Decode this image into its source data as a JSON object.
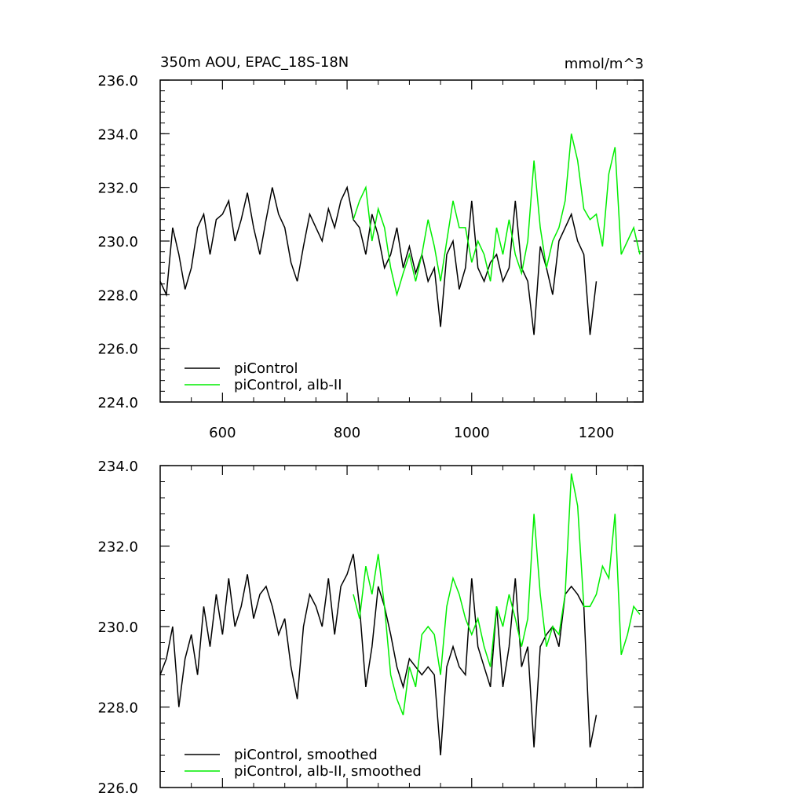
{
  "chart_data": [
    {
      "type": "line",
      "title": "350m AOU, EPAC_18S-18N",
      "units": "mmol/m^3",
      "xlim": [
        500,
        1275
      ],
      "ylim": [
        224.0,
        236.0
      ],
      "xticks": [
        600,
        800,
        1000,
        1200
      ],
      "xtick_labels": [
        "600",
        "800",
        "1000",
        "1200"
      ],
      "yticks": [
        224.0,
        226.0,
        228.0,
        230.0,
        232.0,
        234.0,
        236.0
      ],
      "ytick_labels": [
        "224.0",
        "226.0",
        "228.0",
        "230.0",
        "232.0",
        "234.0",
        "236.0"
      ],
      "series": [
        {
          "name": "piControl",
          "color": "#000000",
          "x": [
            500,
            510,
            520,
            530,
            540,
            550,
            560,
            570,
            580,
            590,
            600,
            610,
            620,
            630,
            640,
            650,
            660,
            670,
            680,
            690,
            700,
            710,
            720,
            730,
            740,
            750,
            760,
            770,
            780,
            790,
            800,
            810,
            820,
            830,
            840,
            850,
            860,
            870,
            880,
            890,
            900,
            910,
            920,
            930,
            940,
            950,
            960,
            970,
            980,
            990,
            1000,
            1010,
            1020,
            1030,
            1040,
            1050,
            1060,
            1070,
            1080,
            1090,
            1100,
            1110,
            1120,
            1130,
            1140,
            1150,
            1160,
            1170,
            1180,
            1190,
            1200
          ],
          "values": [
            228.5,
            228.0,
            230.5,
            229.5,
            228.2,
            229.0,
            230.5,
            231.0,
            229.5,
            230.8,
            231.0,
            231.5,
            230.0,
            230.8,
            231.8,
            230.5,
            229.5,
            230.8,
            232.0,
            231.0,
            230.5,
            229.2,
            228.5,
            229.8,
            231.0,
            230.5,
            230.0,
            231.2,
            230.5,
            231.5,
            232.0,
            230.8,
            230.5,
            229.5,
            231.0,
            230.2,
            229.0,
            229.5,
            230.5,
            229.0,
            229.8,
            228.8,
            229.5,
            228.5,
            229.0,
            226.8,
            229.5,
            230.0,
            228.2,
            229.0,
            231.5,
            229.0,
            228.5,
            229.2,
            229.5,
            228.5,
            229.0,
            231.5,
            229.0,
            228.5,
            226.5,
            229.8,
            229.0,
            228.0,
            230.0,
            230.5,
            231.0,
            230.0,
            229.5,
            226.5,
            228.5
          ]
        },
        {
          "name": "piControl, alb-II",
          "color": "#00ee00",
          "x": [
            810,
            820,
            830,
            840,
            850,
            860,
            870,
            880,
            890,
            900,
            910,
            920,
            930,
            940,
            950,
            960,
            970,
            980,
            990,
            1000,
            1010,
            1020,
            1030,
            1040,
            1050,
            1060,
            1070,
            1080,
            1090,
            1100,
            1110,
            1120,
            1130,
            1140,
            1150,
            1160,
            1170,
            1180,
            1190,
            1200,
            1210,
            1220,
            1230,
            1240,
            1250,
            1260,
            1270
          ],
          "values": [
            230.8,
            231.5,
            232.0,
            230.0,
            231.2,
            230.5,
            229.0,
            228.0,
            228.8,
            229.5,
            228.5,
            229.5,
            230.8,
            229.8,
            228.5,
            230.0,
            231.5,
            230.5,
            230.5,
            229.2,
            230.0,
            229.5,
            228.5,
            230.5,
            229.5,
            230.8,
            229.5,
            228.8,
            230.0,
            233.0,
            230.5,
            229.0,
            230.0,
            230.5,
            231.5,
            234.0,
            233.0,
            231.2,
            230.8,
            231.0,
            229.8,
            232.5,
            233.5,
            229.5,
            230.0,
            230.5,
            229.5
          ]
        }
      ]
    },
    {
      "type": "line",
      "xlim": [
        500,
        1275
      ],
      "ylim": [
        226.0,
        234.0
      ],
      "xticks": [
        600,
        800,
        1000,
        1200
      ],
      "yticks": [
        226.0,
        228.0,
        230.0,
        232.0,
        234.0
      ],
      "ytick_labels": [
        "226.0",
        "228.0",
        "230.0",
        "232.0",
        "234.0"
      ],
      "series": [
        {
          "name": "piControl, smoothed",
          "color": "#000000",
          "x": [
            500,
            510,
            520,
            530,
            540,
            550,
            560,
            570,
            580,
            590,
            600,
            610,
            620,
            630,
            640,
            650,
            660,
            670,
            680,
            690,
            700,
            710,
            720,
            730,
            740,
            750,
            760,
            770,
            780,
            790,
            800,
            810,
            820,
            830,
            840,
            850,
            860,
            870,
            880,
            890,
            900,
            910,
            920,
            930,
            940,
            950,
            960,
            970,
            980,
            990,
            1000,
            1010,
            1020,
            1030,
            1040,
            1050,
            1060,
            1070,
            1080,
            1090,
            1100,
            1110,
            1120,
            1130,
            1140,
            1150,
            1160,
            1170,
            1180,
            1190,
            1200
          ],
          "values": [
            228.8,
            229.2,
            230.0,
            228.0,
            229.2,
            229.8,
            228.8,
            230.5,
            229.5,
            230.8,
            229.8,
            231.2,
            230.0,
            230.5,
            231.3,
            230.2,
            230.8,
            231.0,
            230.5,
            229.8,
            230.2,
            229.0,
            228.2,
            230.0,
            230.8,
            230.5,
            230.0,
            231.2,
            229.8,
            231.0,
            231.3,
            231.8,
            230.5,
            228.5,
            229.5,
            231.0,
            230.5,
            229.8,
            229.0,
            228.5,
            229.2,
            229.0,
            228.8,
            229.0,
            228.8,
            226.8,
            229.0,
            229.5,
            229.0,
            228.8,
            231.2,
            229.5,
            229.0,
            228.5,
            230.5,
            228.5,
            229.5,
            231.2,
            229.0,
            229.5,
            227.0,
            229.5,
            229.8,
            230.0,
            229.5,
            230.8,
            231.0,
            230.8,
            230.5,
            227.0,
            227.8
          ]
        },
        {
          "name": "piControl, alb-II, smoothed",
          "color": "#00ee00",
          "x": [
            810,
            820,
            830,
            840,
            850,
            860,
            870,
            880,
            890,
            900,
            910,
            920,
            930,
            940,
            950,
            960,
            970,
            980,
            990,
            1000,
            1010,
            1020,
            1030,
            1040,
            1050,
            1060,
            1070,
            1080,
            1090,
            1100,
            1110,
            1120,
            1130,
            1140,
            1150,
            1160,
            1170,
            1180,
            1190,
            1200,
            1210,
            1220,
            1230,
            1240,
            1250,
            1260,
            1270
          ],
          "values": [
            230.8,
            230.2,
            231.5,
            230.8,
            231.8,
            230.5,
            228.8,
            228.2,
            227.8,
            229.0,
            228.5,
            229.8,
            230.0,
            229.8,
            228.8,
            230.5,
            231.2,
            230.8,
            230.2,
            229.8,
            230.2,
            229.5,
            229.0,
            230.5,
            230.0,
            230.8,
            230.2,
            229.5,
            230.2,
            232.8,
            230.8,
            229.5,
            230.0,
            229.8,
            230.8,
            233.8,
            233.0,
            230.5,
            230.5,
            230.8,
            231.5,
            231.2,
            232.8,
            229.3,
            229.8,
            230.5,
            230.3
          ]
        }
      ]
    }
  ]
}
